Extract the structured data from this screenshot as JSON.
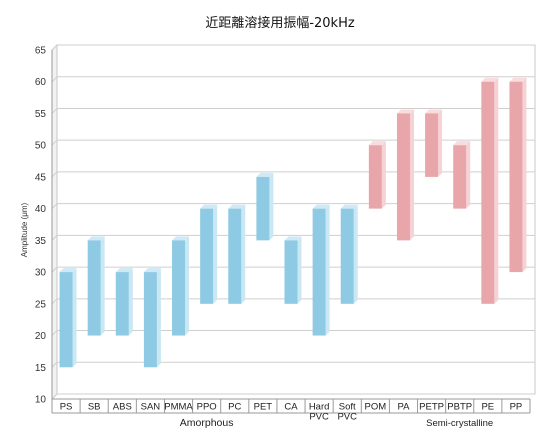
{
  "chart_data": {
    "type": "bar",
    "title": "近距離溶接用振幅-20kHz",
    "ylabel": "Amplitude (μm)",
    "xlabel": "",
    "ylim": [
      10,
      65
    ],
    "yticks": [
      10,
      15,
      20,
      25,
      30,
      35,
      40,
      45,
      50,
      55,
      60,
      65
    ],
    "grid": true,
    "categories": [
      [
        "PS"
      ],
      [
        "SB"
      ],
      [
        "ABS"
      ],
      [
        "SAN"
      ],
      [
        "PMMA"
      ],
      [
        "PPO"
      ],
      [
        "PC"
      ],
      [
        "PET"
      ],
      [
        "CA"
      ],
      [
        "Hard",
        "PVC"
      ],
      [
        "Soft",
        "PVC"
      ],
      [
        "POM"
      ],
      [
        "PA"
      ],
      [
        "PETP"
      ],
      [
        "PBTP"
      ],
      [
        "PE"
      ],
      [
        "PP"
      ]
    ],
    "ranges": [
      [
        15,
        30
      ],
      [
        20,
        35
      ],
      [
        20,
        30
      ],
      [
        15,
        30
      ],
      [
        20,
        35
      ],
      [
        25,
        40
      ],
      [
        25,
        40
      ],
      [
        35,
        45
      ],
      [
        25,
        35
      ],
      [
        20,
        40
      ],
      [
        25,
        40
      ],
      [
        40,
        50
      ],
      [
        35,
        55
      ],
      [
        45,
        55
      ],
      [
        40,
        50
      ],
      [
        25,
        60
      ],
      [
        30,
        60
      ]
    ],
    "groups": [
      {
        "label": "Amorphous",
        "count": 11,
        "color": "#8ecae3",
        "side_color": "#c9e8f4",
        "top_color": "#cfeaf6"
      },
      {
        "label": "Semi-crystalline",
        "count": 6,
        "color": "#e8a6ab",
        "side_color": "#f6d2d4",
        "top_color": "#f8dcde"
      }
    ]
  }
}
